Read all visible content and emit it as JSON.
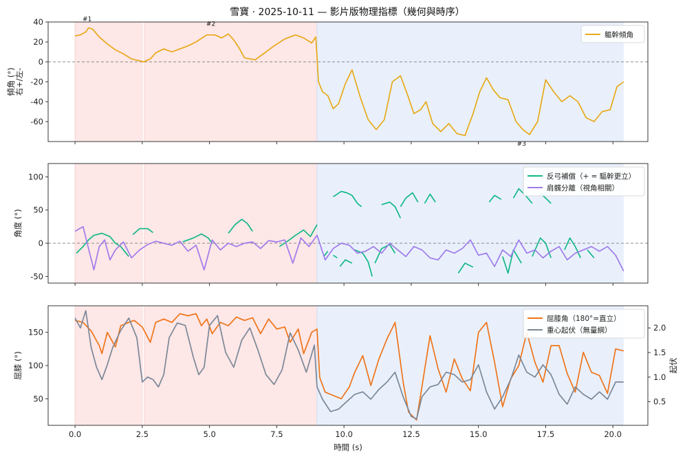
{
  "figure_title": "雪寶 · 2025-10-11 — 影片版物理指標（幾何與時序）",
  "colors": {
    "trunk": "#e8a917",
    "compensation": "#12b886",
    "separation": "#9f7aea",
    "knee": "#f07317",
    "com": "#7a8797",
    "phase_red": "#fde7e7",
    "phase_blue": "#e9f0fc",
    "zero_line": "#888888"
  },
  "chart_data": [
    {
      "type": "line",
      "ylabel": [
        "傾角 (°)",
        "右+/左-"
      ],
      "ylim": [
        -80,
        40
      ],
      "yticks": [
        -60,
        -40,
        -20,
        0,
        20,
        40
      ],
      "xlim": [
        -1,
        21.3
      ],
      "xticks": [
        0,
        2.5,
        5,
        7.5,
        10,
        12.5,
        15,
        17.5,
        20
      ],
      "phases": [
        {
          "start": 0,
          "end": 2.53,
          "color": "red"
        },
        {
          "start": 2.58,
          "end": 9.0,
          "color": "red"
        },
        {
          "start": 9.0,
          "end": 20.4,
          "color": "blue"
        }
      ],
      "hline": 0,
      "legend": {
        "position": "top-right",
        "entries": [
          "軀幹傾角"
        ]
      },
      "annotations": [
        {
          "text": "#1",
          "x": 0.45,
          "y": 39
        },
        {
          "text": "#2",
          "x": 5.05,
          "y": 34
        },
        {
          "text": "#3",
          "x": 16.6,
          "y": -76
        }
      ],
      "series": [
        {
          "name": "軀幹傾角",
          "color_key": "trunk",
          "x": [
            0,
            0.2,
            0.4,
            0.5,
            0.65,
            0.9,
            1.2,
            1.5,
            1.8,
            2.1,
            2.4,
            2.55,
            2.8,
            3.0,
            3.3,
            3.6,
            3.9,
            4.2,
            4.5,
            4.9,
            5.2,
            5.45,
            5.7,
            5.9,
            6.1,
            6.3,
            6.7,
            7.0,
            7.4,
            7.8,
            8.2,
            8.5,
            8.8,
            8.95,
            9.0,
            9.05,
            9.2,
            9.4,
            9.6,
            9.8,
            10.05,
            10.3,
            10.6,
            10.9,
            11.2,
            11.5,
            11.8,
            12.1,
            12.35,
            12.6,
            12.85,
            13.05,
            13.3,
            13.6,
            13.9,
            14.2,
            14.5,
            14.8,
            15.05,
            15.3,
            15.55,
            15.8,
            16.1,
            16.4,
            16.65,
            16.9,
            17.2,
            17.5,
            17.8,
            18.1,
            18.4,
            18.7,
            19.0,
            19.3,
            19.6,
            19.9,
            20.15,
            20.4
          ],
          "y": [
            26,
            27,
            30,
            34,
            33,
            25,
            18,
            12,
            8,
            3,
            1,
            0,
            3,
            9,
            13,
            10,
            13,
            16,
            20,
            27,
            27,
            24,
            28,
            22,
            14,
            4,
            2,
            8,
            16,
            23,
            27,
            24,
            19,
            25,
            5,
            -20,
            -30,
            -34,
            -47,
            -42,
            -22,
            -8,
            -35,
            -58,
            -68,
            -58,
            -20,
            -14,
            -32,
            -52,
            -48,
            -40,
            -62,
            -70,
            -62,
            -72,
            -74,
            -52,
            -30,
            -16,
            -28,
            -36,
            -38,
            -60,
            -68,
            -73,
            -60,
            -18,
            -30,
            -40,
            -34,
            -40,
            -56,
            -60,
            -50,
            -48,
            -25,
            -20
          ]
        }
      ]
    },
    {
      "type": "line",
      "ylabel": "角度 (°)",
      "ylim": [
        -60,
        120
      ],
      "yticks": [
        -50,
        0,
        50,
        100
      ],
      "xlim": [
        -1,
        21.3
      ],
      "xticks": [
        0,
        2.5,
        5,
        7.5,
        10,
        12.5,
        15,
        17.5,
        20
      ],
      "hline": 0,
      "legend": {
        "position": "top-right",
        "entries": [
          "反弓補償（+ = 驅幹更立）",
          "肩髖分離（視角相關）"
        ]
      },
      "series": [
        {
          "name": "反弓補償（+ = 驅幹更立）",
          "color_key": "compensation",
          "segments": [
            {
              "x": [
                0.05,
                0.3,
                0.5,
                0.7,
                1.0,
                1.3,
                1.5,
                1.7,
                2.0
              ],
              "y": [
                -15,
                -5,
                5,
                12,
                15,
                10,
                0,
                -5,
                -20
              ]
            },
            {
              "x": [
                2.15,
                2.4,
                2.7,
                2.9
              ],
              "y": [
                13,
                22,
                22,
                16
              ]
            },
            {
              "x": [
                4.0,
                4.4,
                4.7,
                4.95,
                5.1
              ],
              "y": [
                2,
                8,
                14,
                8,
                0
              ]
            },
            {
              "x": [
                5.7,
                5.95,
                6.2,
                6.4,
                6.6
              ],
              "y": [
                15,
                28,
                36,
                30,
                18
              ]
            },
            {
              "x": [
                7.6,
                7.9,
                8.2,
                8.5,
                8.75,
                9.0
              ],
              "y": [
                -5,
                3,
                12,
                20,
                10,
                28
              ]
            },
            {
              "x": [
                9.25,
                9.4
              ],
              "y": [
                -20,
                -12
              ]
            },
            {
              "x": [
                9.6,
                9.75
              ],
              "y": [
                -18,
                -22
              ]
            },
            {
              "x": [
                9.85,
                10.05,
                10.3
              ],
              "y": [
                -35,
                -25,
                -30
              ]
            },
            {
              "x": [
                10.4,
                10.7,
                10.9,
                11.05
              ],
              "y": [
                -10,
                -15,
                -28,
                -50
              ]
            },
            {
              "x": [
                11.15,
                11.4,
                11.7,
                11.9
              ],
              "y": [
                -30,
                -8,
                -2,
                -15
              ]
            },
            {
              "x": [
                14.25,
                14.5,
                14.8
              ],
              "y": [
                -45,
                -30,
                -36
              ]
            },
            {
              "x": [
                15.9,
                16.1,
                16.3,
                16.6
              ],
              "y": [
                -20,
                -45,
                -10,
                -30
              ]
            },
            {
              "x": [
                17.0,
                17.3,
                17.5,
                17.7
              ],
              "y": [
                -20,
                8,
                0,
                -22
              ]
            },
            {
              "x": [
                18.2,
                18.4,
                18.6,
                18.8
              ],
              "y": [
                -10,
                8,
                -5,
                -22
              ]
            },
            {
              "x": [
                19.05,
                19.3
              ],
              "y": [
                -10,
                -22
              ]
            },
            {
              "x": [
                9.6,
                9.9,
                10.1,
                10.3,
                10.5,
                10.65
              ],
              "y": [
                70,
                78,
                76,
                72,
                60,
                55
              ]
            },
            {
              "x": [
                11.4,
                11.7,
                11.9,
                12.1
              ],
              "y": [
                58,
                62,
                55,
                38
              ]
            },
            {
              "x": [
                12.1,
                12.3,
                12.55,
                12.75
              ],
              "y": [
                55,
                68,
                76,
                62
              ]
            },
            {
              "x": [
                13.0,
                13.2,
                13.4
              ],
              "y": [
                60,
                74,
                62
              ]
            },
            {
              "x": [
                15.4,
                15.6,
                15.85
              ],
              "y": [
                62,
                72,
                66
              ]
            },
            {
              "x": [
                16.3,
                16.5,
                16.75,
                17.0
              ],
              "y": [
                68,
                82,
                72,
                60
              ]
            },
            {
              "x": [
                17.3,
                17.5,
                17.7
              ],
              "y": [
                75,
                68,
                60
              ]
            }
          ]
        },
        {
          "name": "肩髖分離（視角相關）",
          "color_key": "separation",
          "x": [
            0.0,
            0.3,
            0.5,
            0.7,
            0.9,
            1.1,
            1.3,
            1.5,
            1.8,
            2.1,
            2.4,
            2.7,
            3.0,
            3.3,
            3.6,
            3.9,
            4.2,
            4.5,
            4.8,
            5.1,
            5.4,
            5.7,
            6.0,
            6.3,
            6.6,
            6.9,
            7.2,
            7.5,
            7.8,
            8.1,
            8.4,
            8.7,
            9.0,
            9.3,
            9.6,
            9.9,
            10.2,
            10.5,
            10.8,
            11.1,
            11.4,
            11.7,
            12.0,
            12.3,
            12.6,
            12.9,
            13.2,
            13.5,
            13.8,
            14.1,
            14.4,
            14.7,
            15.0,
            15.3,
            15.6,
            15.9,
            16.2,
            16.5,
            16.8,
            17.1,
            17.4,
            17.7,
            18.0,
            18.3,
            18.6,
            18.9,
            19.2,
            19.5,
            19.8,
            20.1,
            20.4
          ],
          "y": [
            18,
            25,
            -8,
            -40,
            -5,
            5,
            -25,
            -10,
            2,
            -22,
            -10,
            -2,
            3,
            0,
            -3,
            3,
            -12,
            -3,
            -40,
            5,
            -10,
            0,
            -5,
            0,
            2,
            -8,
            4,
            2,
            5,
            -30,
            8,
            -5,
            12,
            -25,
            -8,
            0,
            -3,
            -15,
            -12,
            -5,
            -15,
            0,
            -10,
            -20,
            -5,
            -10,
            -22,
            -25,
            -10,
            -15,
            -8,
            5,
            -18,
            -15,
            -35,
            -10,
            -20,
            5,
            -15,
            -10,
            -22,
            -12,
            -5,
            -25,
            -15,
            -10,
            -5,
            -12,
            -5,
            -18,
            -42
          ]
        }
      ]
    },
    {
      "type": "line",
      "ylabel": "屈膝 (°)",
      "y2label": "起伏",
      "ylim": [
        10,
        190
      ],
      "yticks": [
        50,
        100,
        150
      ],
      "y2lim": [
        0.02,
        2.45
      ],
      "y2ticks": [
        0.5,
        1.0,
        1.5,
        2.0
      ],
      "y2ticklabels": [
        "0.5",
        "1.0",
        "1.5",
        "2.0"
      ],
      "xlim": [
        -1,
        21.3
      ],
      "xticks": [
        0,
        2.5,
        5,
        7.5,
        10,
        12.5,
        15,
        17.5,
        20
      ],
      "xticklabels": [
        "0.0",
        "2.5",
        "5.0",
        "7.5",
        "10.0",
        "12.5",
        "15.0",
        "17.5",
        "20.0"
      ],
      "xlabel": "時間 (s)",
      "legend": {
        "position": "top-right",
        "entries": [
          "屈膝角（180°=直立）",
          "重心起伏（無量綱）"
        ]
      },
      "series": [
        {
          "name": "屈膝角（180°=直立）",
          "color_key": "knee",
          "axis": "left",
          "x": [
            0,
            0.3,
            0.6,
            0.9,
            1.0,
            1.2,
            1.5,
            1.7,
            2.0,
            2.2,
            2.5,
            2.8,
            3.0,
            3.3,
            3.6,
            3.9,
            4.2,
            4.5,
            4.7,
            4.9,
            5.1,
            5.4,
            5.7,
            6.0,
            6.3,
            6.6,
            6.9,
            7.2,
            7.5,
            7.8,
            8.0,
            8.3,
            8.5,
            8.8,
            9.0,
            9.1,
            9.3,
            9.6,
            9.9,
            10.2,
            10.4,
            10.7,
            11.0,
            11.3,
            11.6,
            11.9,
            12.2,
            12.4,
            12.7,
            12.9,
            13.2,
            13.5,
            13.8,
            14.1,
            14.4,
            14.7,
            15.0,
            15.3,
            15.6,
            15.9,
            16.2,
            16.5,
            16.8,
            17.1,
            17.4,
            17.7,
            18.0,
            18.3,
            18.6,
            18.9,
            19.2,
            19.5,
            19.8,
            20.1,
            20.4
          ],
          "y": [
            168,
            165,
            152,
            130,
            118,
            150,
            128,
            160,
            165,
            168,
            158,
            135,
            165,
            170,
            165,
            178,
            175,
            178,
            160,
            170,
            148,
            165,
            160,
            173,
            168,
            172,
            148,
            170,
            155,
            158,
            135,
            155,
            118,
            150,
            155,
            82,
            60,
            55,
            50,
            68,
            90,
            115,
            70,
            110,
            140,
            165,
            75,
            30,
            18,
            68,
            145,
            95,
            60,
            110,
            80,
            62,
            150,
            165,
            105,
            38,
            80,
            100,
            150,
            105,
            75,
            130,
            130,
            88,
            60,
            120,
            90,
            85,
            58,
            125,
            122
          ]
        },
        {
          "name": "重心起伏（無量綱）",
          "color_key": "com",
          "axis": "right",
          "x": [
            0,
            0.2,
            0.4,
            0.6,
            0.8,
            1.0,
            1.2,
            1.4,
            1.7,
            2.0,
            2.3,
            2.5,
            2.7,
            2.9,
            3.1,
            3.3,
            3.5,
            3.8,
            4.1,
            4.4,
            4.6,
            4.8,
            5.0,
            5.3,
            5.6,
            5.9,
            6.2,
            6.5,
            6.8,
            7.1,
            7.4,
            7.7,
            8.0,
            8.3,
            8.6,
            8.9,
            9.0,
            9.2,
            9.5,
            9.8,
            10.1,
            10.4,
            10.7,
            11.0,
            11.3,
            11.6,
            11.9,
            12.2,
            12.5,
            12.7,
            12.9,
            13.2,
            13.5,
            13.8,
            14.1,
            14.4,
            14.7,
            15.0,
            15.3,
            15.6,
            15.9,
            16.2,
            16.5,
            16.8,
            17.1,
            17.4,
            17.7,
            18.0,
            18.3,
            18.6,
            18.9,
            19.2,
            19.5,
            19.8,
            20.1,
            20.4
          ],
          "y": [
            2.2,
            2.0,
            2.35,
            1.6,
            1.2,
            0.95,
            1.25,
            1.6,
            1.95,
            2.2,
            1.8,
            0.9,
            1.0,
            0.95,
            0.8,
            1.05,
            1.8,
            2.1,
            2.05,
            1.4,
            1.05,
            1.2,
            2.05,
            2.25,
            1.5,
            1.2,
            1.75,
            2.0,
            1.55,
            1.05,
            0.85,
            1.15,
            1.9,
            1.55,
            1.1,
            1.65,
            0.8,
            0.55,
            0.3,
            0.35,
            0.5,
            0.65,
            0.7,
            0.55,
            0.75,
            0.9,
            1.1,
            0.6,
            0.2,
            0.15,
            0.6,
            0.8,
            0.85,
            1.1,
            1.05,
            0.9,
            0.95,
            1.25,
            0.7,
            0.35,
            0.6,
            0.95,
            1.45,
            1.1,
            1.0,
            1.25,
            1.05,
            0.65,
            0.45,
            0.8,
            0.65,
            0.55,
            0.7,
            0.55,
            0.9,
            0.9
          ]
        }
      ]
    }
  ]
}
